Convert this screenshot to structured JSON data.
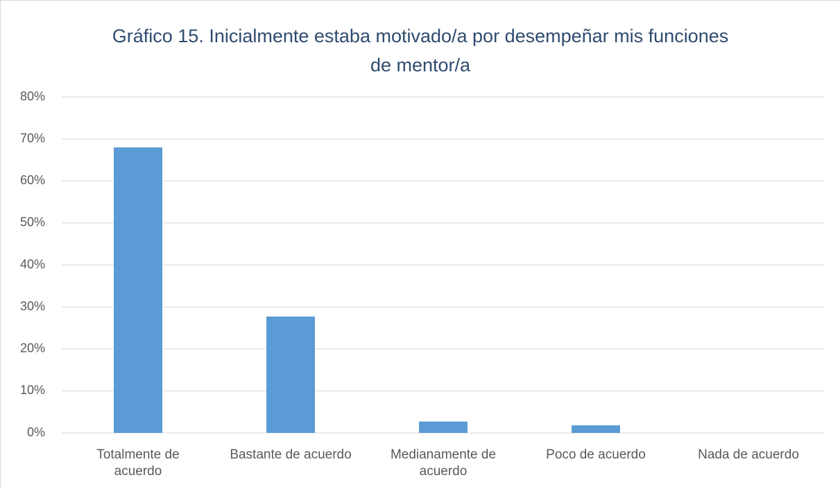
{
  "chart_data": {
    "type": "bar",
    "title": "Gráfico 15. Inicialmente estaba motivado/a por desempeñar mis funciones de mentor/a",
    "categories": [
      "Totalmente de acuerdo",
      "Bastante de acuerdo",
      "Medianamente de acuerdo",
      "Poco de acuerdo",
      "Nada de acuerdo"
    ],
    "values": [
      68,
      27.7,
      2.7,
      1.8,
      0
    ],
    "color": "#5b9bd5",
    "ylim": [
      0,
      80
    ],
    "yticks": [
      {
        "value": 0,
        "label": "0%"
      },
      {
        "value": 10,
        "label": "10%"
      },
      {
        "value": 20,
        "label": "20%"
      },
      {
        "value": 30,
        "label": "30%"
      },
      {
        "value": 40,
        "label": "40%"
      },
      {
        "value": 50,
        "label": "50%"
      },
      {
        "value": 60,
        "label": "60%"
      },
      {
        "value": 70,
        "label": "70%"
      },
      {
        "value": 80,
        "label": "80%"
      }
    ],
    "grid": true
  }
}
